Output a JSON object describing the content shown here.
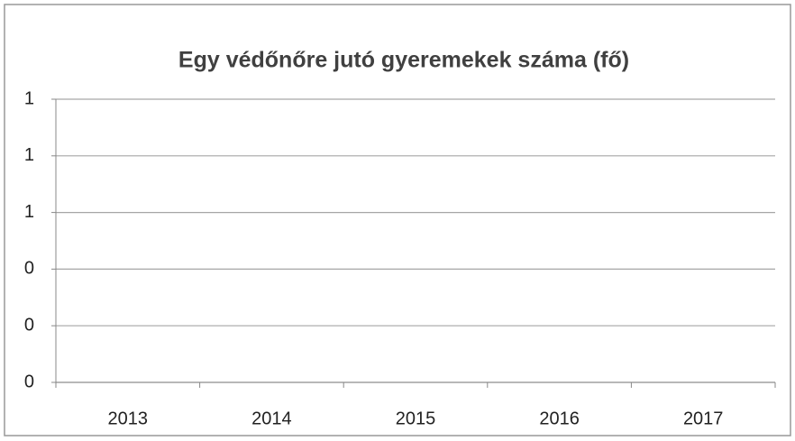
{
  "chart_data": {
    "type": "line",
    "title": "Egy védőnőre jutó gyeremekek száma (fő)",
    "categories": [
      "2013",
      "2014",
      "2015",
      "2016",
      "2017"
    ],
    "values": [
      null,
      null,
      null,
      null,
      null
    ],
    "color": "#4472c4",
    "ylim": [
      0,
      1
    ],
    "yticks": [
      0,
      {
        "value": 0.2,
        "label": "0"
      },
      {
        "value": 0.4,
        "label": "0"
      },
      {
        "value": 0.6,
        "label": "1"
      },
      {
        "value": 0.8,
        "label": "1"
      },
      1
    ],
    "grid": true
  }
}
